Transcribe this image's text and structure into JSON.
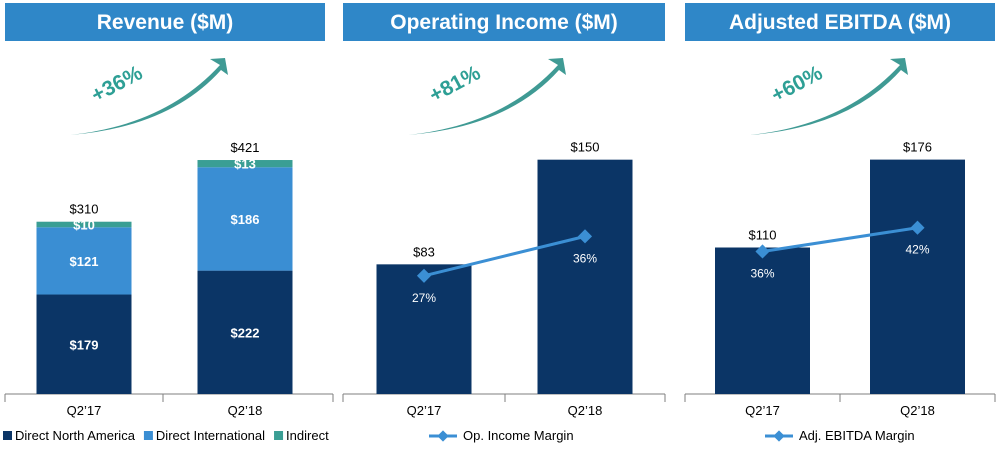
{
  "colors": {
    "header_bg": "#2f87c8",
    "north_america": "#0b3566",
    "international": "#3a8ed3",
    "indirect": "#3a9e94",
    "margin_line": "#3b8fd4",
    "arrow": "#2a8f88",
    "axis": "#7f7f7f"
  },
  "chart_data": [
    {
      "type": "bar",
      "stacked": true,
      "title": "Revenue ($M)",
      "growth_label": "+36%",
      "categories": [
        "Q2’17",
        "Q2’18"
      ],
      "series": [
        {
          "name": "Direct North America",
          "values": [
            179,
            222
          ],
          "labels": [
            "$179",
            "$222"
          ],
          "color": "#0b3566"
        },
        {
          "name": "Direct International",
          "values": [
            121,
            186
          ],
          "labels": [
            "$121",
            "$186"
          ],
          "color": "#3a8ed3"
        },
        {
          "name": "Indirect",
          "values": [
            10,
            13
          ],
          "labels": [
            "$10",
            "$13"
          ],
          "color": "#3a9e94"
        }
      ],
      "totals": [
        310,
        421
      ],
      "total_labels": [
        "$310",
        "$421"
      ],
      "ylim": [
        0,
        520
      ],
      "legend": "bottom",
      "grid": false
    },
    {
      "type": "bar",
      "title": "Operating Income ($M)",
      "growth_label": "+81%",
      "categories": [
        "Q2’17",
        "Q2’18"
      ],
      "values": [
        83,
        150
      ],
      "value_labels": [
        "$83",
        "$150"
      ],
      "ylim": [
        0,
        185
      ],
      "line_series": {
        "name": "Op. Income Margin",
        "values": [
          27,
          36
        ],
        "labels": [
          "27%",
          "36%"
        ],
        "ylim": [
          0,
          66
        ]
      },
      "legend": "bottom",
      "grid": false
    },
    {
      "type": "bar",
      "title": "Adjusted EBITDA ($M)",
      "growth_label": "+60%",
      "categories": [
        "Q2’17",
        "Q2’18"
      ],
      "values": [
        110,
        176
      ],
      "value_labels": [
        "$110",
        "$176"
      ],
      "ylim": [
        0,
        217
      ],
      "line_series": {
        "name": "Adj. EBITDA Margin",
        "values": [
          36,
          42
        ],
        "labels": [
          "36%",
          "42%"
        ],
        "ylim": [
          0,
          73
        ]
      },
      "legend": "bottom",
      "grid": false
    }
  ]
}
